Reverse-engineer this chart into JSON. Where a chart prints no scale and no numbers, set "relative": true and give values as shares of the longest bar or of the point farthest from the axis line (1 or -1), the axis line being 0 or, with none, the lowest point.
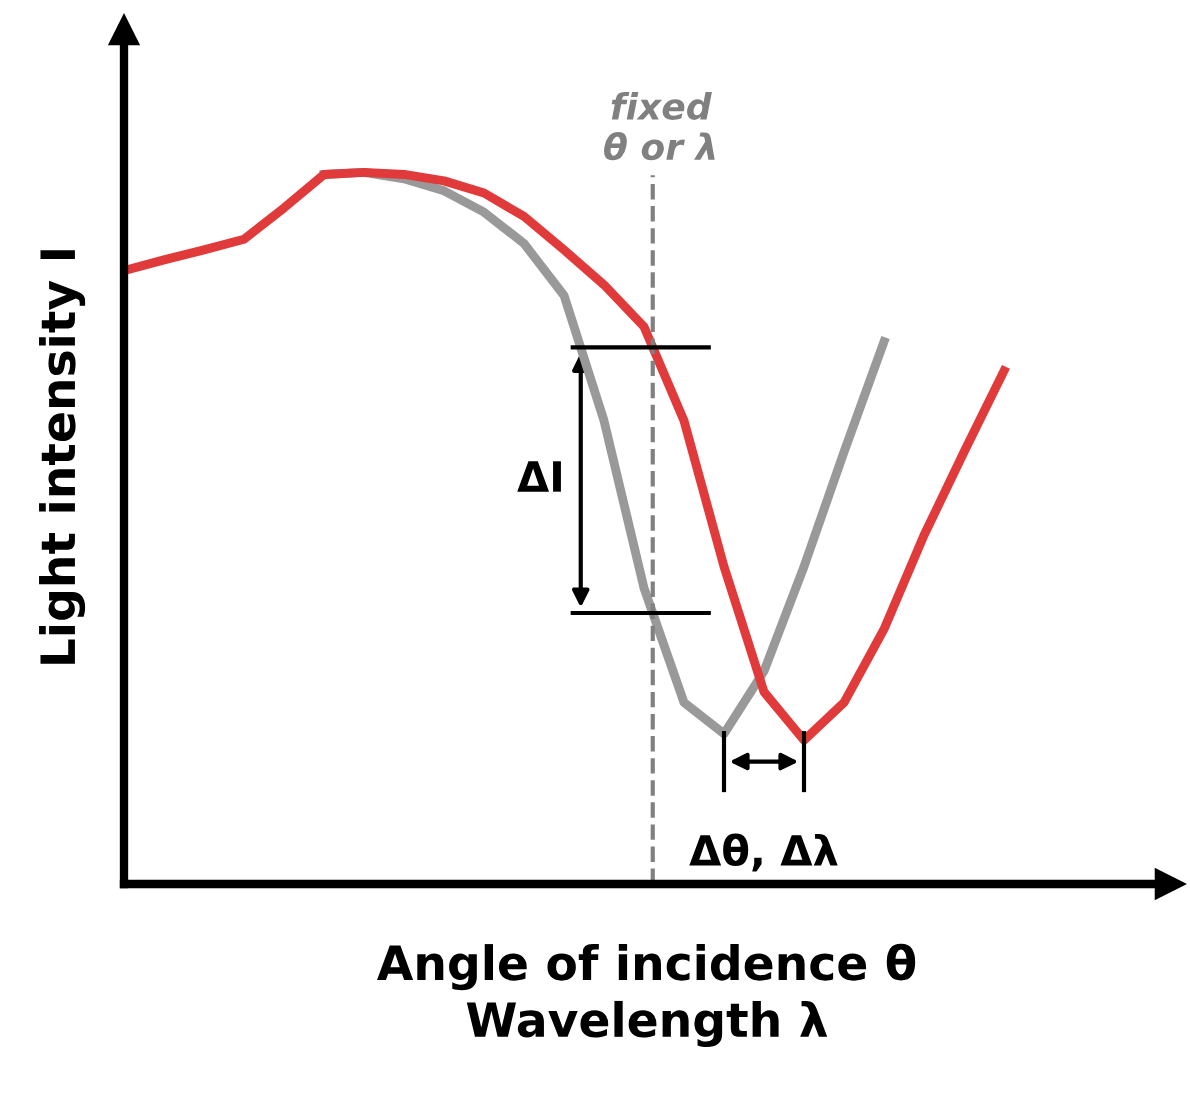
{
  "chart_data": {
    "type": "line",
    "relative": true,
    "xlabel": "Angle of incidence θ\nWavelength λ",
    "ylabel": "Light intensity I",
    "marker": "none",
    "line_style": "solid",
    "categories": [
      null,
      null,
      null,
      null,
      null,
      null,
      null,
      null,
      null,
      null,
      null,
      null,
      null,
      null,
      null,
      null,
      null,
      null,
      null,
      null,
      null,
      null,
      null
    ],
    "series": [
      {
        "color": "#999999",
        "values": [
          null,
          null,
          null,
          null,
          null,
          0.997,
          1.0,
          0.991,
          0.974,
          0.944,
          0.9,
          0.827,
          0.651,
          0.416,
          0.255,
          0.211,
          0.299,
          0.446,
          0.607,
          0.762,
          null,
          null,
          null
        ]
      },
      {
        "color": "#e03a3a",
        "values": [
          0.862,
          0.877,
          0.891,
          0.906,
          0.95,
          0.997,
          1.0,
          0.997,
          0.988,
          0.971,
          0.938,
          0.891,
          0.842,
          0.783,
          0.651,
          0.446,
          0.27,
          0.202,
          0.255,
          0.358,
          0.49,
          0.607,
          0.721
        ]
      }
    ],
    "annotations": [
      "ΔI",
      "Δθ, Δλ",
      "fixed\nθ or λ"
    ]
  }
}
